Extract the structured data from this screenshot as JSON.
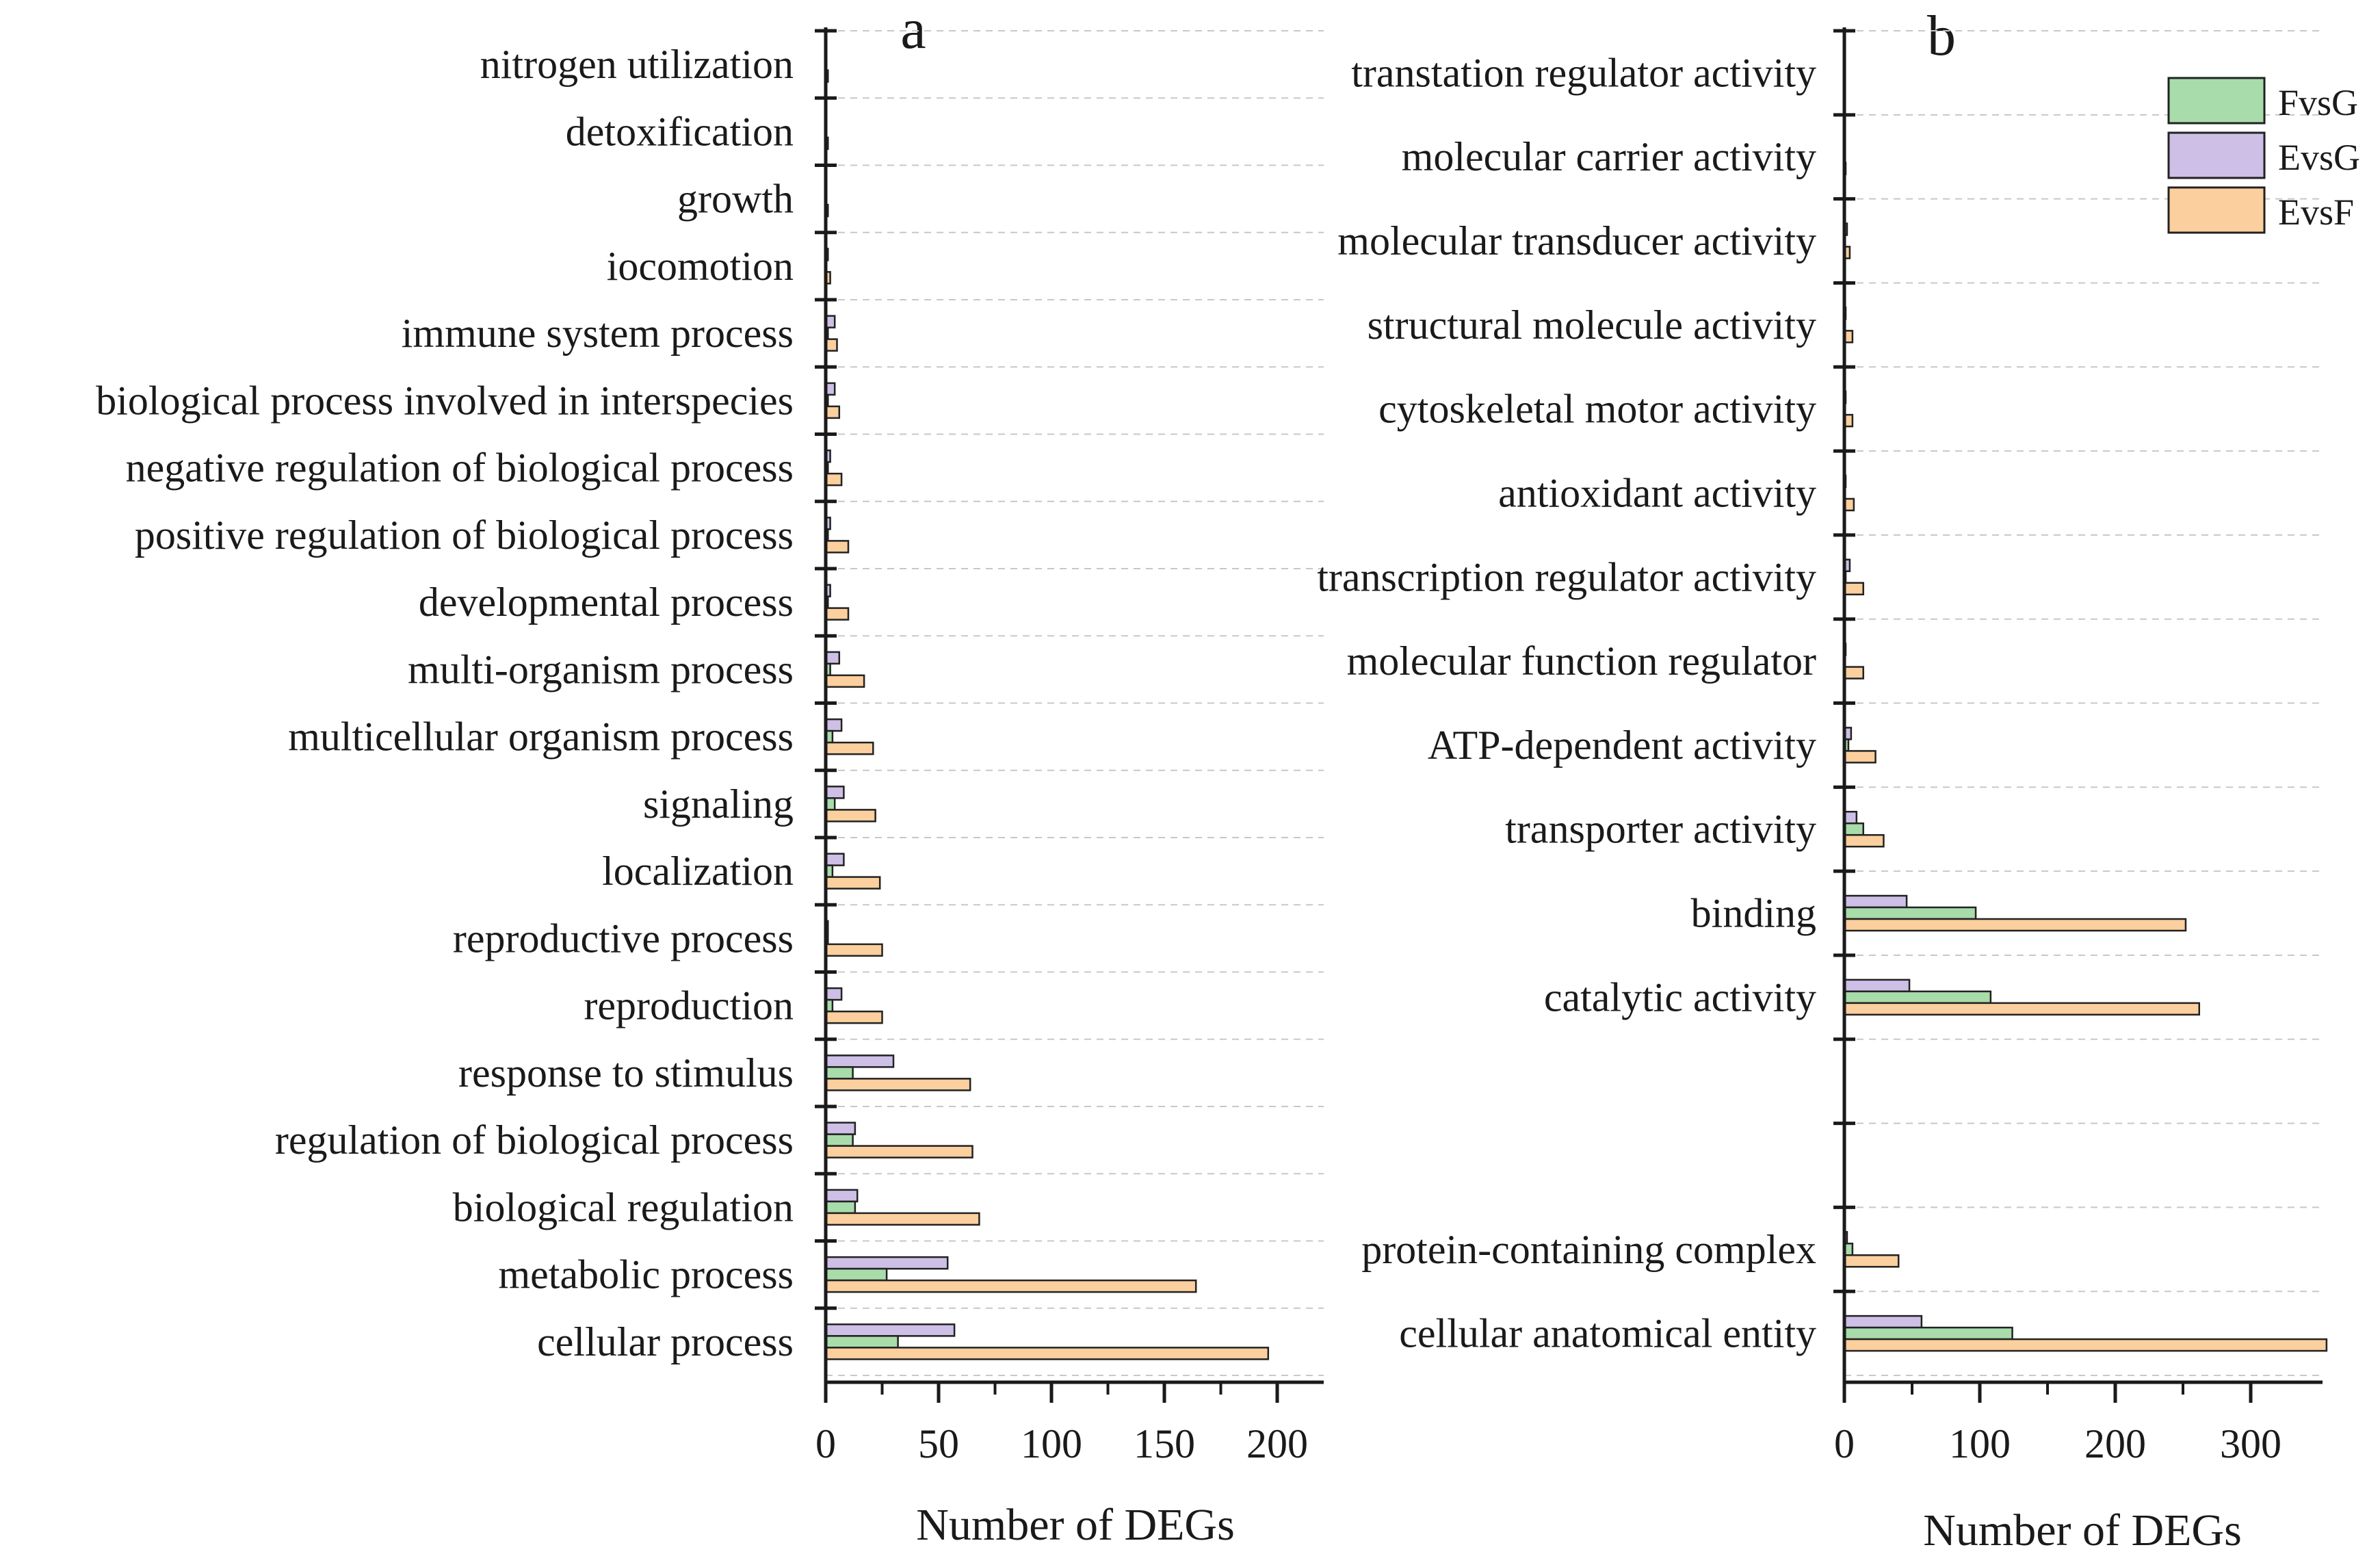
{
  "chart_data": [
    {
      "panel_label": "a",
      "type": "bar",
      "orientation": "horizontal",
      "xlabel": "Number of DEGs",
      "xlim": [
        0,
        220
      ],
      "xticks": [
        0,
        50,
        100,
        150,
        200
      ],
      "categories": [
        "nitrogen utilization",
        "detoxification",
        "growth",
        "iocomotion",
        "immune system process",
        "biological process involved in interspecies",
        "negative regulation of biological process",
        "positive regulation of biological process",
        "developmental process",
        "multi-organism process",
        "multicellular organism process",
        "signaling",
        "localization",
        "reproductive process",
        "reproduction",
        "response to stimulus",
        "regulation of biological process",
        "biological regulation",
        "metabolic process",
        "cellular process"
      ],
      "series": [
        {
          "name": "FvsG",
          "values": [
            0,
            0,
            0,
            0,
            1,
            1,
            1,
            1,
            1,
            2,
            3,
            4,
            3,
            1,
            3,
            12,
            12,
            13,
            27,
            32
          ]
        },
        {
          "name": "EvsG",
          "values": [
            0,
            0,
            0,
            1,
            4,
            4,
            2,
            2,
            2,
            6,
            7,
            8,
            8,
            1,
            7,
            30,
            13,
            14,
            54,
            57
          ]
        },
        {
          "name": "EvsF",
          "values": [
            1,
            1,
            1,
            2,
            5,
            6,
            7,
            10,
            10,
            17,
            21,
            22,
            24,
            25,
            25,
            64,
            65,
            68,
            164,
            196
          ]
        }
      ],
      "grid": "horizontal dashed",
      "legend": "none"
    },
    {
      "panel_label": "b",
      "type": "bar",
      "orientation": "horizontal",
      "xlabel": "Number of DEGs",
      "xlim": [
        0,
        370
      ],
      "xticks": [
        0,
        100,
        200,
        300
      ],
      "categories": [
        "transtation regulator activity",
        "molecular carrier activity",
        "molecular transducer activity",
        "structural molecule activity",
        "cytoskeletal motor activity",
        "antioxidant activity",
        "transcription regulator activity",
        "molecular function regulator",
        "ATP-dependent activity",
        "transporter activity",
        "binding",
        "catalytic activity",
        "",
        "",
        "protein-containing complex",
        "cellular anatomical entity"
      ],
      "series": [
        {
          "name": "FvsG",
          "values": [
            0,
            0,
            0,
            0,
            0,
            0,
            1,
            0,
            3,
            14,
            97,
            108,
            0,
            0,
            6,
            124
          ]
        },
        {
          "name": "EvsG",
          "values": [
            0,
            0,
            2,
            1,
            1,
            1,
            4,
            1,
            5,
            9,
            46,
            48,
            0,
            0,
            2,
            57
          ]
        },
        {
          "name": "EvsF",
          "values": [
            0,
            1,
            4,
            6,
            6,
            7,
            14,
            14,
            23,
            29,
            252,
            262,
            0,
            0,
            40,
            356
          ]
        }
      ],
      "grid": "horizontal dashed",
      "legend": "top-right"
    }
  ],
  "legend": [
    {
      "name": "FvsG",
      "color": "#a8dcaa"
    },
    {
      "name": "EvsG",
      "color": "#cdbfe6"
    },
    {
      "name": "EvsF",
      "color": "#fbcf9e"
    }
  ],
  "colors": {
    "FvsG": "#a8dcaa",
    "EvsG": "#cdbfe6",
    "EvsF": "#fbcf9e",
    "bar_stroke": "#222222",
    "axis": "#1a1a1a",
    "grid": "#c8c8c8"
  }
}
